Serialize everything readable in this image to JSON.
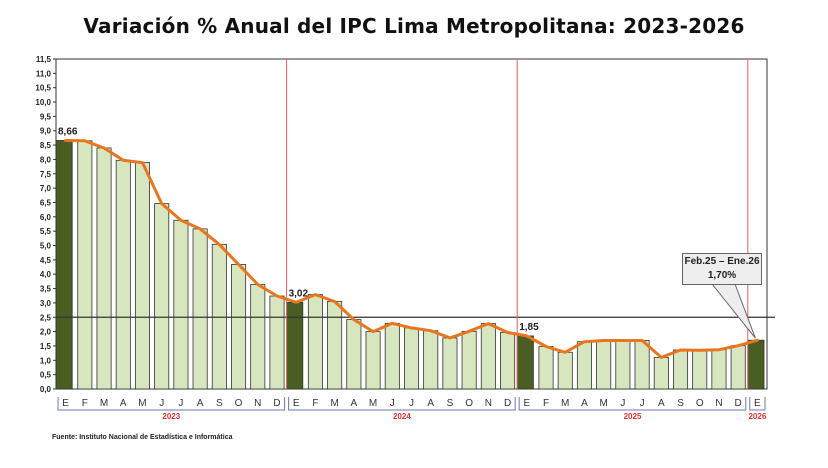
{
  "chart_data": {
    "type": "bar",
    "title": "Variación % Anual del IPC Lima Metropolitana: 2023-2026",
    "xlabel": "",
    "ylabel": "",
    "ylim": [
      0,
      11.5
    ],
    "ytick_step": 0.5,
    "reference_line": 2.5,
    "years": [
      {
        "label": "2023",
        "months": [
          "E",
          "F",
          "M",
          "A",
          "M",
          "J",
          "J",
          "A",
          "S",
          "O",
          "N",
          "D"
        ]
      },
      {
        "label": "2024",
        "months": [
          "E",
          "F",
          "M",
          "A",
          "M",
          "J",
          "J",
          "A",
          "S",
          "O",
          "N",
          "D"
        ]
      },
      {
        "label": "2025",
        "months": [
          "E",
          "F",
          "M",
          "A",
          "M",
          "J",
          "J",
          "A",
          "S",
          "O",
          "N",
          "D"
        ]
      },
      {
        "label": "2026",
        "months": [
          "E"
        ]
      }
    ],
    "values": [
      8.66,
      8.65,
      8.4,
      7.97,
      7.89,
      6.46,
      5.88,
      5.58,
      5.04,
      4.34,
      3.64,
      3.24,
      3.02,
      3.29,
      3.05,
      2.42,
      2.0,
      2.29,
      2.13,
      2.03,
      1.78,
      2.01,
      2.28,
      1.97,
      1.85,
      1.48,
      1.28,
      1.65,
      1.69,
      1.69,
      1.69,
      1.1,
      1.36,
      1.35,
      1.37,
      1.51,
      1.7
    ],
    "data_labels": [
      {
        "index": 0,
        "text": "8,66"
      },
      {
        "index": 12,
        "text": "3,02"
      },
      {
        "index": 24,
        "text": "1,85"
      }
    ],
    "callout": {
      "line1": "Feb.25 – Ene.26",
      "line2": "1,70%"
    },
    "grid": false,
    "colors": {
      "january_bar": "#4a5e23",
      "bar": "#d8e6bf",
      "line": "#e8761e",
      "year_divider": "#e06060",
      "year_label": "#e03030"
    }
  },
  "source": "Fuente: Instituto Nacional de Estadística e Informática"
}
